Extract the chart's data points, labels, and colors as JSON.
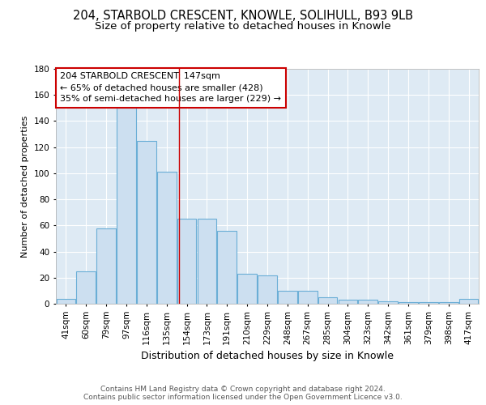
{
  "title_line1": "204, STARBOLD CRESCENT, KNOWLE, SOLIHULL, B93 9LB",
  "title_line2": "Size of property relative to detached houses in Knowle",
  "xlabel": "Distribution of detached houses by size in Knowle",
  "ylabel": "Number of detached properties",
  "bar_labels": [
    "41sqm",
    "60sqm",
    "79sqm",
    "97sqm",
    "116sqm",
    "135sqm",
    "154sqm",
    "173sqm",
    "191sqm",
    "210sqm",
    "229sqm",
    "248sqm",
    "267sqm",
    "285sqm",
    "304sqm",
    "323sqm",
    "342sqm",
    "361sqm",
    "379sqm",
    "398sqm",
    "417sqm"
  ],
  "bar_values": [
    4,
    25,
    58,
    150,
    125,
    101,
    65,
    65,
    56,
    23,
    22,
    10,
    10,
    5,
    3,
    3,
    2,
    1,
    1,
    1,
    4
  ],
  "bar_color": "#ccdff0",
  "bar_edge_color": "#6aaed6",
  "ylim": [
    0,
    180
  ],
  "yticks": [
    0,
    20,
    40,
    60,
    80,
    100,
    120,
    140,
    160,
    180
  ],
  "annotation_text": "204 STARBOLD CRESCENT: 147sqm\n← 65% of detached houses are smaller (428)\n35% of semi-detached houses are larger (229) →",
  "annotation_box_color": "#ffffff",
  "annotation_box_edge": "#cc0000",
  "footer_text": "Contains HM Land Registry data © Crown copyright and database right 2024.\nContains public sector information licensed under the Open Government Licence v3.0.",
  "background_color": "#deeaf4",
  "grid_color": "#ffffff",
  "fig_background": "#ffffff",
  "title_fontsize": 10.5,
  "subtitle_fontsize": 9.5,
  "ylabel_fontsize": 8,
  "xlabel_fontsize": 9,
  "tick_fontsize": 7.5,
  "footer_fontsize": 6.5,
  "annot_fontsize": 8
}
